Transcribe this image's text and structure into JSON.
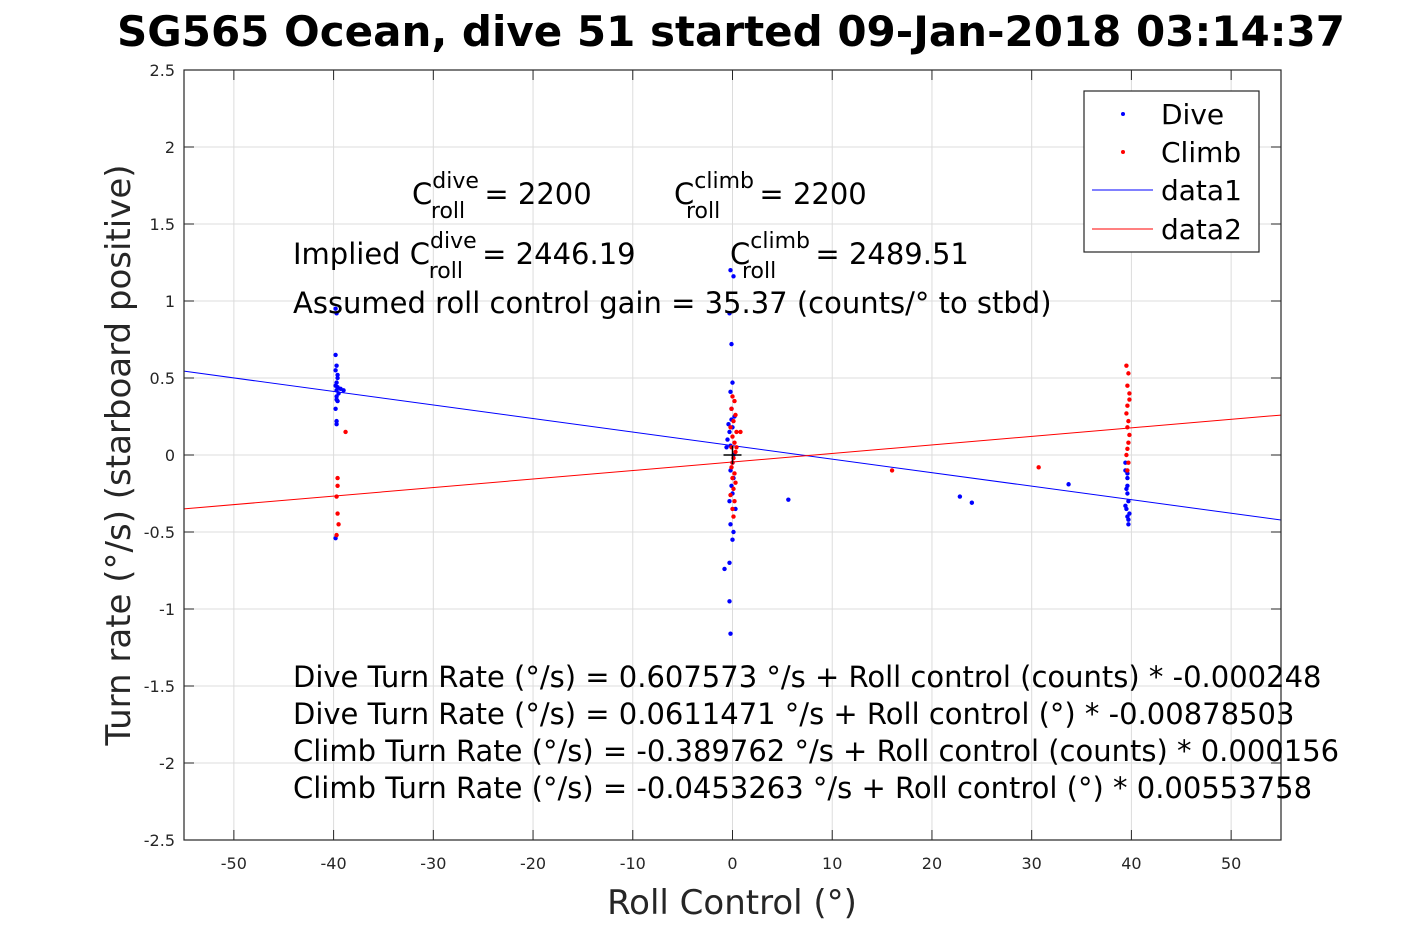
{
  "chart_data": {
    "type": "scatter",
    "title": "SG565 Ocean, dive 51 started 09-Jan-2018 03:14:37",
    "xlabel": "Roll Control (°)",
    "ylabel": "Turn rate (°/s) (starboard positive)",
    "xlim": [
      -55,
      55
    ],
    "ylim": [
      -2.5,
      2.5
    ],
    "xticks": [
      -50,
      -40,
      -30,
      -20,
      -10,
      0,
      10,
      20,
      30,
      40,
      50
    ],
    "xtick_labels": [
      "-50",
      "-40",
      "-30",
      "-20",
      "-10",
      "0",
      "10",
      "20",
      "30",
      "40",
      "50"
    ],
    "yticks": [
      -2.5,
      -2,
      -1.5,
      -1,
      -0.5,
      0,
      0.5,
      1,
      1.5,
      2,
      2.5
    ],
    "ytick_labels": [
      "-2.5",
      "-2",
      "-1.5",
      "-1",
      "-0.5",
      "0",
      "0.5",
      "1",
      "1.5",
      "2",
      "2.5"
    ],
    "grid": true,
    "legend_position": "top-right",
    "colors": {
      "dive": "#0000ff",
      "climb": "#ff0000",
      "fit_dive": "#0000ff",
      "fit_climb": "#ff0000"
    },
    "series": [
      {
        "name": "Dive",
        "kind": "points",
        "x": [
          -39.8,
          -39.7,
          -39.8,
          -39.7,
          -39.6,
          -39.8,
          -39.7,
          -39.7,
          -39.6,
          -39.8,
          -39.7,
          -39.5,
          -39.7,
          -39.8,
          -39.7,
          -39.6,
          -39.3,
          -39.0,
          -39.8,
          -39.7,
          -39.6,
          -0.6,
          -0.2,
          0.1,
          -0.3,
          -0.1,
          0.0,
          -0.2,
          -0.1,
          0.2,
          -0.4,
          -0.3,
          -0.5,
          -0.2,
          0.1,
          0.0,
          -0.2,
          0.1,
          -0.1,
          0.0,
          -0.3,
          0.3,
          -0.2,
          0.1,
          0.0,
          -0.3,
          -0.8,
          -0.3,
          -0.2,
          -0.1,
          0.0,
          5.6,
          22.8,
          24.0,
          33.7,
          39.4,
          39.6,
          39.6,
          39.7,
          39.5,
          39.6,
          39.7,
          39.6,
          39.4,
          39.8,
          39.7,
          39.6,
          39.5,
          39.4
        ],
        "y": [
          0.95,
          0.92,
          0.65,
          0.58,
          0.5,
          0.45,
          0.42,
          0.38,
          0.35,
          0.3,
          0.22,
          0.4,
          0.47,
          0.55,
          0.2,
          0.44,
          0.43,
          0.42,
          -0.54,
          0.36,
          0.52,
          0.05,
          1.2,
          1.16,
          0.92,
          0.72,
          0.47,
          0.41,
          0.3,
          0.25,
          0.2,
          0.15,
          0.1,
          0.06,
          0.0,
          -0.05,
          -0.1,
          -0.15,
          -0.2,
          -0.25,
          -0.3,
          -0.35,
          -0.45,
          -0.5,
          -0.55,
          -0.7,
          -0.74,
          -0.95,
          -1.16,
          0.23,
          0.18,
          -0.29,
          -0.27,
          -0.31,
          -0.19,
          -0.1,
          -0.2,
          -0.25,
          -0.3,
          -0.35,
          -0.4,
          -0.45,
          -0.15,
          -0.05,
          -0.38,
          -0.42,
          -0.12,
          -0.22,
          -0.33
        ]
      },
      {
        "name": "Climb",
        "kind": "points",
        "x": [
          -38.8,
          -39.6,
          -39.6,
          -39.7,
          -39.6,
          -39.5,
          -39.7,
          0.0,
          0.2,
          -0.1,
          0.3,
          0.1,
          -0.2,
          0.4,
          0.0,
          0.2,
          -0.1,
          0.3,
          0.1,
          0.0,
          -0.1,
          0.2,
          0.0,
          0.3,
          0.1,
          -0.2,
          0.2,
          0.0,
          0.1,
          0.4,
          0.8,
          16.0,
          30.7,
          39.5,
          39.7,
          39.6,
          39.8,
          39.6,
          39.5,
          39.7,
          39.6,
          39.8,
          39.7,
          39.6,
          39.5,
          39.7,
          39.6,
          39.8
        ],
        "y": [
          0.15,
          -0.15,
          -0.2,
          -0.27,
          -0.38,
          -0.45,
          -0.52,
          0.38,
          0.35,
          0.3,
          0.26,
          0.22,
          0.18,
          0.15,
          0.12,
          0.08,
          0.05,
          0.02,
          -0.02,
          -0.05,
          -0.08,
          -0.12,
          -0.15,
          -0.18,
          -0.22,
          -0.26,
          -0.3,
          -0.35,
          -0.4,
          0.05,
          0.15,
          -0.1,
          -0.08,
          0.58,
          0.53,
          0.45,
          0.4,
          0.32,
          0.27,
          0.22,
          0.18,
          0.13,
          0.08,
          0.04,
          0.0,
          -0.05,
          -0.1,
          0.36
        ]
      },
      {
        "name": "data1",
        "kind": "line",
        "x": [
          -55,
          55
        ],
        "y": [
          0.5443,
          -0.4221
        ]
      },
      {
        "name": "data2",
        "kind": "line",
        "x": [
          -55,
          55
        ],
        "y": [
          -0.3499,
          0.2593
        ]
      }
    ],
    "annotations": {
      "c_roll_dive": {
        "base": "C",
        "sup": "dive",
        "sub": "roll",
        "value": " = 2200"
      },
      "c_roll_climb": {
        "base": "C",
        "sup": "climb",
        "sub": "roll",
        "value": " = 2200"
      },
      "implied_prefix": "Implied ",
      "implied_dive": {
        "base": "C",
        "sup": "dive",
        "sub": "roll",
        "value": " = 2446.19"
      },
      "implied_climb": {
        "base": "C",
        "sup": "climb",
        "sub": "roll",
        "value": " = 2489.51"
      },
      "gain": "Assumed roll control gain = 35.37 (counts/° to stbd)",
      "fit_lines": [
        "Dive Turn Rate (°/s) = 0.607573 °/s + Roll control (counts) * -0.000248",
        "Dive Turn Rate (°/s) = 0.0611471 °/s + Roll control (°) * -0.00878503",
        "Climb Turn Rate (°/s) = -0.389762 °/s + Roll control (counts) * 0.000156",
        "Climb Turn Rate (°/s) = -0.0453263 °/s + Roll control (°) * 0.00553758"
      ]
    }
  }
}
